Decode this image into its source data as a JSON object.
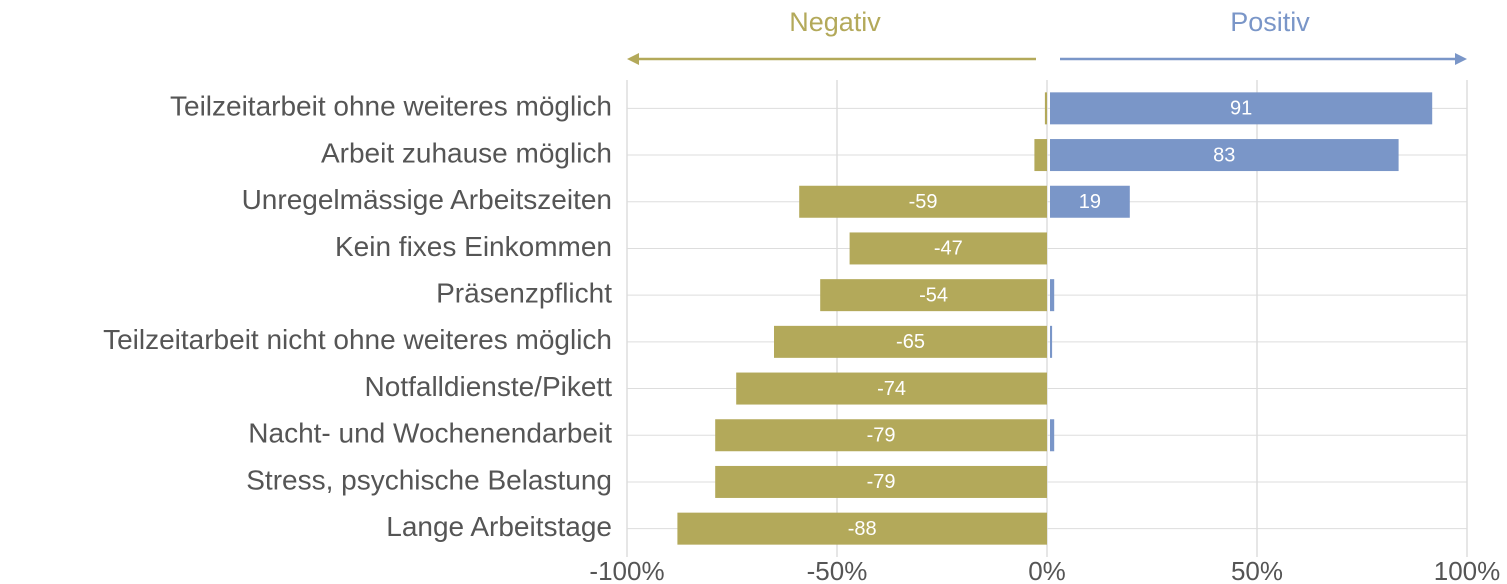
{
  "chart_data": {
    "type": "diverging_bar",
    "categories": [
      "Teilzeitarbeit ohne weiteres möglich",
      "Arbeit zuhause möglich",
      "Unregelmässige Arbeitszeiten",
      "Kein fixes Einkommen",
      "Präsenzpflicht",
      "Teilzeitarbeit nicht ohne weiteres möglich",
      "Notfalldienste/Pikett",
      "Nacht- und Wochenendarbeit",
      "Stress, psychische Belastung",
      "Lange Arbeitstage"
    ],
    "series": [
      {
        "name": "Negativ",
        "color": "#b3a95a",
        "values": [
          -0.5,
          -3,
          -59,
          -47,
          -54,
          -65,
          -74,
          -79,
          -79,
          -88
        ],
        "value_labels": [
          null,
          null,
          "-59",
          "-47",
          "-54",
          "-65",
          "-74",
          "-79",
          "-79",
          "-88"
        ]
      },
      {
        "name": "Positiv",
        "color": "#7a96c8",
        "values": [
          91,
          83,
          19,
          0,
          1,
          0.5,
          0,
          1,
          0,
          0
        ],
        "value_labels": [
          "91",
          "83",
          "19",
          null,
          null,
          null,
          null,
          null,
          null,
          null
        ]
      }
    ],
    "xlim": [
      -100,
      100
    ],
    "xticks": [
      {
        "value": -100,
        "label": "-100%"
      },
      {
        "value": -50,
        "label": "-50%"
      },
      {
        "value": 0,
        "label": "0%"
      },
      {
        "value": 50,
        "label": "50%"
      },
      {
        "value": 100,
        "label": "100%"
      }
    ],
    "grid": true
  }
}
